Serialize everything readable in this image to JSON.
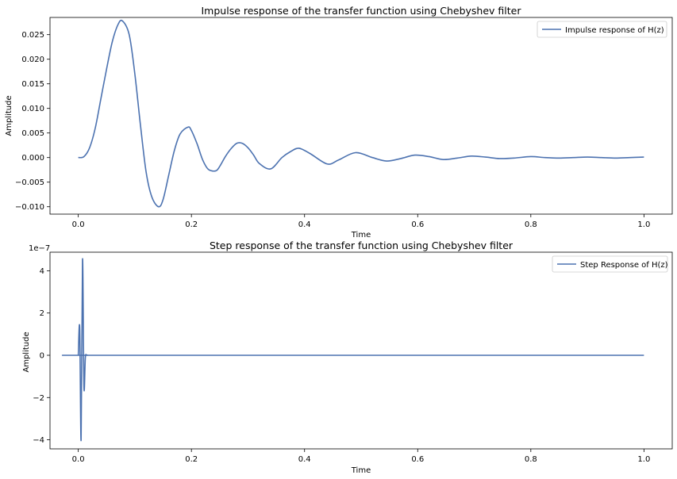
{
  "chart_data": [
    {
      "type": "line",
      "title": "Impulse response of the transfer function using Chebyshev filter",
      "xlabel": "Time",
      "ylabel": "Amplitude",
      "xlim": [
        -0.05,
        1.05
      ],
      "ylim": [
        -0.0115,
        0.0285
      ],
      "xticks": [
        0.0,
        0.2,
        0.4,
        0.6,
        0.8,
        1.0
      ],
      "xtick_labels": [
        "0.0",
        "0.2",
        "0.4",
        "0.6",
        "0.8",
        "1.0"
      ],
      "yticks": [
        -0.01,
        -0.005,
        0.0,
        0.005,
        0.01,
        0.015,
        0.02,
        0.025
      ],
      "ytick_labels": [
        "−0.010",
        "−0.005",
        "0.000",
        "0.005",
        "0.010",
        "0.015",
        "0.020",
        "0.025"
      ],
      "grid": false,
      "legend_position": "top-right",
      "series": [
        {
          "name": "Impulse response of H(z)",
          "color": "#4c72b0",
          "x": [
            0.0,
            0.01,
            0.02,
            0.03,
            0.04,
            0.05,
            0.06,
            0.07,
            0.078,
            0.09,
            0.1,
            0.11,
            0.12,
            0.13,
            0.142,
            0.15,
            0.16,
            0.17,
            0.18,
            0.194,
            0.2,
            0.21,
            0.22,
            0.23,
            0.243,
            0.25,
            0.26,
            0.27,
            0.28,
            0.29,
            0.3,
            0.31,
            0.32,
            0.34,
            0.36,
            0.375,
            0.39,
            0.41,
            0.44,
            0.46,
            0.49,
            0.52,
            0.545,
            0.57,
            0.595,
            0.62,
            0.645,
            0.67,
            0.695,
            0.72,
            0.745,
            0.77,
            0.8,
            0.825,
            0.85,
            0.875,
            0.9,
            0.925,
            0.95,
            0.975,
            1.0
          ],
          "y": [
            0.0,
            0.0002,
            0.002,
            0.006,
            0.012,
            0.018,
            0.0235,
            0.027,
            0.0278,
            0.025,
            0.017,
            0.0065,
            -0.003,
            -0.008,
            -0.01,
            -0.0085,
            -0.0035,
            0.0015,
            0.0048,
            0.0062,
            0.0055,
            0.0028,
            -0.0005,
            -0.0024,
            -0.0027,
            -0.0018,
            0.0002,
            0.0018,
            0.0029,
            0.0029,
            0.002,
            0.0005,
            -0.0012,
            -0.0023,
            0.0,
            0.0012,
            0.0019,
            0.0008,
            -0.0013,
            -0.0005,
            0.001,
            0.0,
            -0.0007,
            -0.0002,
            0.0005,
            0.0002,
            -0.0004,
            -0.0001,
            0.0003,
            0.0001,
            -0.0002,
            -0.0001,
            0.0002,
            0.0,
            -0.0001,
            0.0,
            0.0001,
            0.0,
            -0.0001,
            0.0,
            0.0001
          ]
        }
      ]
    },
    {
      "type": "line",
      "title": "Step response of the transfer function using Chebyshev filter",
      "xlabel": "Time",
      "ylabel": "Amplitude",
      "scale_label": "1e−7",
      "xlim": [
        -0.05,
        1.05
      ],
      "ylim": [
        -4.43e-07,
        4.88e-07
      ],
      "xticks": [
        0.0,
        0.2,
        0.4,
        0.6,
        0.8,
        1.0
      ],
      "xtick_labels": [
        "0.0",
        "0.2",
        "0.4",
        "0.6",
        "0.8",
        "1.0"
      ],
      "yticks": [
        -4e-07,
        -2e-07,
        0.0,
        2e-07,
        4e-07
      ],
      "ytick_labels": [
        "−4",
        "−2",
        "0",
        "2",
        "4"
      ],
      "grid": false,
      "legend_position": "top-right",
      "series": [
        {
          "name": "Step Response of H(z)",
          "color": "#4c72b0",
          "x": [
            0.0,
            0.0025,
            0.005,
            0.0075,
            0.01,
            0.0125,
            0.015,
            0.0175,
            0.02,
            0.025,
            0.05,
            1.0
          ],
          "y": [
            0.0,
            1.3e-07,
            -4e-07,
            4.55e-07,
            -1.5e-07,
            -1e-08,
            0.0,
            0.0,
            0.0,
            0.0,
            0.0,
            0.0
          ]
        }
      ]
    }
  ]
}
